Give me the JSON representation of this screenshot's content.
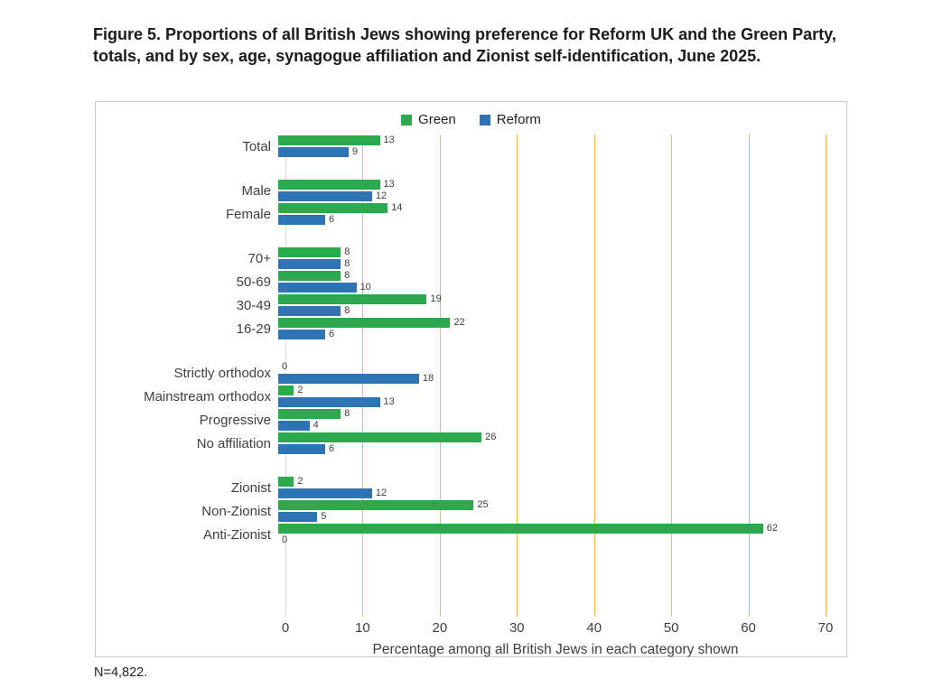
{
  "footnote": "N=4,822.",
  "chart_data": {
    "type": "bar",
    "orientation": "horizontal",
    "title": "Figure 5. Proportions of all British Jews showing preference for Reform UK and the Green Party, totals, and by sex, age, synagogue affiliation and Zionist self-identification, June 2025.",
    "xlabel": "Percentage among all British Jews in each category shown",
    "xlim": [
      0,
      70
    ],
    "xticks": [
      0,
      10,
      20,
      30,
      40,
      50,
      60,
      70
    ],
    "grid": true,
    "gridline_color": "#f6bb45",
    "legend_position": "top",
    "series": [
      {
        "name": "Green",
        "color": "#2ea84d"
      },
      {
        "name": "Reform",
        "color": "#2e74b5"
      }
    ],
    "groups": [
      {
        "rows": [
          {
            "label": "Total",
            "values": [
              13,
              9
            ]
          }
        ]
      },
      {
        "rows": [
          {
            "label": "Male",
            "values": [
              13,
              12
            ]
          },
          {
            "label": "Female",
            "values": [
              14,
              6
            ]
          }
        ]
      },
      {
        "rows": [
          {
            "label": "70+",
            "values": [
              8,
              8
            ]
          },
          {
            "label": "50-69",
            "values": [
              8,
              10
            ]
          },
          {
            "label": "30-49",
            "values": [
              19,
              8
            ]
          },
          {
            "label": "16-29",
            "values": [
              22,
              6
            ]
          }
        ]
      },
      {
        "rows": [
          {
            "label": "Strictly orthodox",
            "values": [
              0,
              18
            ]
          },
          {
            "label": "Mainstream orthodox",
            "values": [
              2,
              13
            ]
          },
          {
            "label": "Progressive",
            "values": [
              8,
              4
            ]
          },
          {
            "label": "No affiliation",
            "values": [
              26,
              6
            ]
          }
        ]
      },
      {
        "rows": [
          {
            "label": "Zionist",
            "values": [
              2,
              12
            ]
          },
          {
            "label": "Non-Zionist",
            "values": [
              25,
              5
            ]
          },
          {
            "label": "Anti-Zionist",
            "values": [
              62,
              0
            ]
          }
        ]
      }
    ]
  }
}
